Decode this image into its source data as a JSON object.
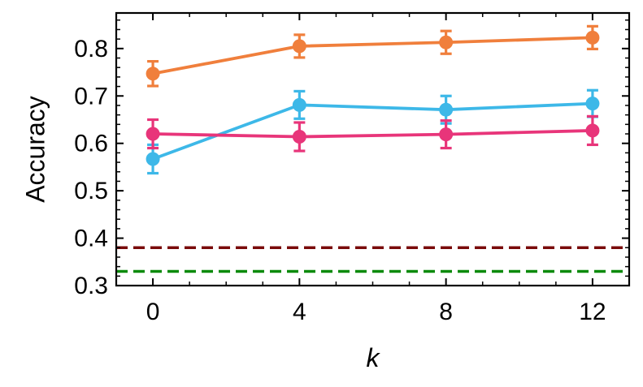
{
  "chart_data": {
    "type": "line",
    "title": "",
    "xlabel": "k",
    "ylabel": "Accuracy",
    "xlim": [
      -1,
      13
    ],
    "ylim": [
      0.3,
      0.875
    ],
    "x_ticks": [
      0,
      4,
      8,
      12
    ],
    "x_tick_labels": [
      "0",
      "4",
      "8",
      "12"
    ],
    "y_ticks": [
      0.3,
      0.4,
      0.5,
      0.6,
      0.7,
      0.8
    ],
    "y_tick_labels": [
      "0.3",
      "0.4",
      "0.5",
      "0.6",
      "0.7",
      "0.8"
    ],
    "grid": false,
    "legend": "none",
    "x": [
      0,
      4,
      8,
      12
    ],
    "series": [
      {
        "color": "#F07F3C",
        "values": [
          0.747,
          0.805,
          0.813,
          0.823
        ],
        "errors": [
          0.026,
          0.024,
          0.024,
          0.024
        ]
      },
      {
        "color": "#3DB8E8",
        "values": [
          0.567,
          0.681,
          0.671,
          0.684
        ],
        "errors": [
          0.03,
          0.029,
          0.029,
          0.028
        ]
      },
      {
        "color": "#E8357A",
        "values": [
          0.62,
          0.614,
          0.619,
          0.627
        ],
        "errors": [
          0.03,
          0.03,
          0.029,
          0.03
        ]
      }
    ],
    "reference_lines": [
      {
        "y": 0.38,
        "color": "#7A0A0A",
        "style": "dashed"
      },
      {
        "y": 0.33,
        "color": "#0A8A0A",
        "style": "dashed"
      }
    ]
  }
}
